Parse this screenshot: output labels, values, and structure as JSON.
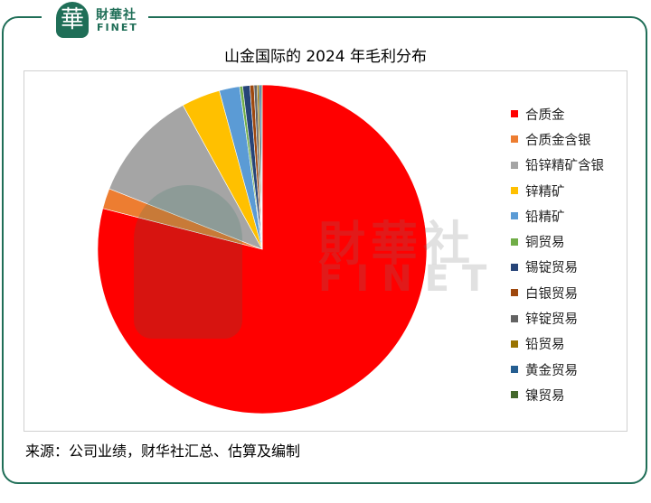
{
  "brand": {
    "seal_char": "華",
    "name_cn": "財華社",
    "name_en": "FINET",
    "color": "#1f6e57"
  },
  "chart_data": {
    "type": "pie",
    "title": "山金国际的 2024 年毛利分布",
    "legend_position": "right",
    "slices": [
      {
        "label": "合质金",
        "value": 79.0,
        "color": "#ff0000"
      },
      {
        "label": "合质金含银",
        "value": 2.0,
        "color": "#ed7d31"
      },
      {
        "label": "铅锌精矿含银",
        "value": 11.0,
        "color": "#a5a5a5"
      },
      {
        "label": "锌精矿",
        "value": 3.8,
        "color": "#ffc000"
      },
      {
        "label": "铅精矿",
        "value": 2.0,
        "color": "#5b9bd5"
      },
      {
        "label": "铜贸易",
        "value": 0.3,
        "color": "#70ad47"
      },
      {
        "label": "锡锭贸易",
        "value": 0.7,
        "color": "#264478"
      },
      {
        "label": "白银贸易",
        "value": 0.4,
        "color": "#9e480e"
      },
      {
        "label": "锌锭贸易",
        "value": 0.3,
        "color": "#636363"
      },
      {
        "label": "铅贸易",
        "value": 0.2,
        "color": "#997300"
      },
      {
        "label": "黄金贸易",
        "value": 0.2,
        "color": "#255e91"
      },
      {
        "label": "镍贸易",
        "value": 0.1,
        "color": "#43682b"
      }
    ]
  },
  "source_text": "来源：公司业绩，财华社汇总、估算及编制"
}
